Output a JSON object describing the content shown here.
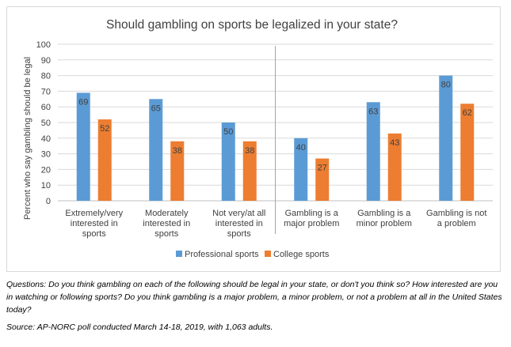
{
  "chart_data": {
    "type": "bar",
    "title": "Should gambling on sports be legalized in your state?",
    "xlabel": "",
    "ylabel": "Percent who say gambling should be legal",
    "ylim": [
      0,
      100
    ],
    "yticks": [
      0,
      10,
      20,
      30,
      40,
      50,
      60,
      70,
      80,
      90,
      100
    ],
    "categories": [
      "Extremely/very interested in sports",
      "Moderately interested in sports",
      "Not very/at all interested in sports",
      "Gambling is a major problem",
      "Gambling is a minor problem",
      "Gambling is not a problem"
    ],
    "category_lines": [
      [
        "Extremely/very",
        "interested in",
        "sports"
      ],
      [
        "Moderately",
        "interested in",
        "sports"
      ],
      [
        "Not very/at all",
        "interested in",
        "sports"
      ],
      [
        "Gambling is a",
        "major problem"
      ],
      [
        "Gambling is a",
        "minor problem"
      ],
      [
        "Gambling is not",
        "a problem"
      ]
    ],
    "series": [
      {
        "name": "Professional sports",
        "color": "#5b9bd5",
        "values": [
          69,
          65,
          50,
          40,
          63,
          80
        ]
      },
      {
        "name": "College sports",
        "color": "#ed7d31",
        "values": [
          52,
          38,
          38,
          27,
          43,
          62
        ]
      }
    ],
    "grid": true,
    "legend": "bottom-center",
    "separator_after_category": 3
  },
  "notes": {
    "questions": "Questions: Do you think gambling on each of the following should be legal in your state, or don't you think so? How interested are you in watching or following sports? Do you think gambling is a major problem, a minor problem, or not a problem at all in the United States today?",
    "source": "Source: AP-NORC poll conducted March 14-18, 2019, with 1,063 adults."
  }
}
